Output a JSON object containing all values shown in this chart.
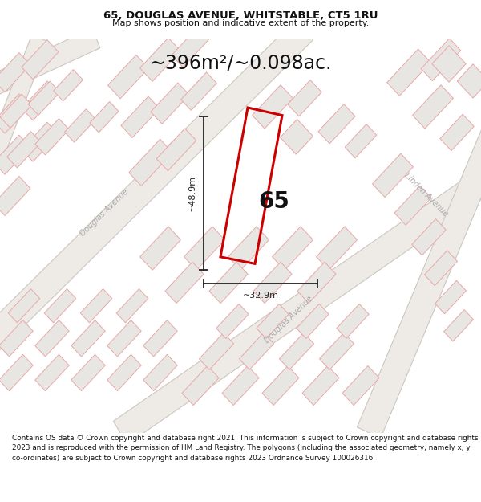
{
  "title": "65, DOUGLAS AVENUE, WHITSTABLE, CT5 1RU",
  "subtitle": "Map shows position and indicative extent of the property.",
  "area_text": "~396m²/~0.098ac.",
  "label_65": "65",
  "dim_width": "~32.9m",
  "dim_height": "~48.9m",
  "douglas_avenue_upper": "Douglas Avenue",
  "douglas_avenue_lower": "Douglas Avenue",
  "linden_avenue": "Linden Avenue",
  "footer": "Contains OS data © Crown copyright and database right 2021. This information is subject to Crown copyright and database rights 2023 and is reproduced with the permission of HM Land Registry. The polygons (including the associated geometry, namely x, y co-ordinates) are subject to Crown copyright and database rights 2023 Ordnance Survey 100026316.",
  "map_bg": "#f7f6f4",
  "building_fill": "#e8e6e3",
  "building_outline": "#e8a8a8",
  "road_fill": "#f0eeeb",
  "road_outline": "#d4ccc4",
  "highlight_outline": "#cc0000",
  "dim_color": "#222222",
  "text_color": "#222222",
  "road_label_color": "#aaaaaa",
  "title_color": "#111111",
  "footer_color": "#111111"
}
